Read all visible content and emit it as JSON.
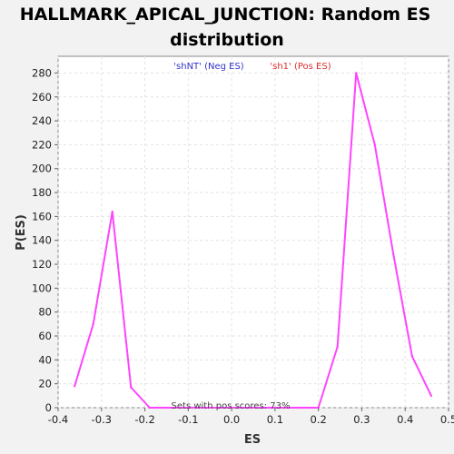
{
  "chart_data": {
    "type": "line",
    "title": "HALLMARK_APICAL_JUNCTION: Random ES distribution",
    "title_lines": [
      "HALLMARK_APICAL_JUNCTION: Random ES",
      "distribution"
    ],
    "xlabel": "ES",
    "ylabel": "P(ES)",
    "xlim": [
      -0.4,
      0.5
    ],
    "ylim": [
      0,
      294
    ],
    "xticks": [
      -0.4,
      -0.3,
      -0.2,
      -0.1,
      0.0,
      0.1,
      0.2,
      0.3,
      0.4,
      0.5
    ],
    "xtick_labels": [
      "-0.4",
      "-0.3",
      "-0.2",
      "-0.1",
      "0.0",
      "0.1",
      "0.2",
      "0.3",
      "0.4",
      "0.5"
    ],
    "yticks": [
      0,
      20,
      40,
      60,
      80,
      100,
      120,
      140,
      160,
      180,
      200,
      220,
      240,
      260,
      280
    ],
    "ytick_labels": [
      "0",
      "20",
      "40",
      "60",
      "80",
      "100",
      "120",
      "140",
      "160",
      "180",
      "200",
      "220",
      "240",
      "260",
      "280"
    ],
    "grid": true,
    "legend": [
      {
        "label": "'shNT' (Neg ES)",
        "color": "#3333cc"
      },
      {
        "label": "'sh1' (Pos ES)",
        "color": "#e03030"
      }
    ],
    "annotation": "Sets with pos scores: 73%",
    "series": [
      {
        "color": "#ff44ff",
        "x": [
          -0.362,
          -0.319,
          -0.275,
          -0.232,
          -0.189,
          0.2,
          0.244,
          0.287,
          0.33,
          0.373,
          0.416,
          0.46
        ],
        "y": [
          18,
          70,
          164,
          17,
          0,
          0,
          51,
          280,
          220,
          128,
          43,
          10
        ]
      }
    ]
  }
}
